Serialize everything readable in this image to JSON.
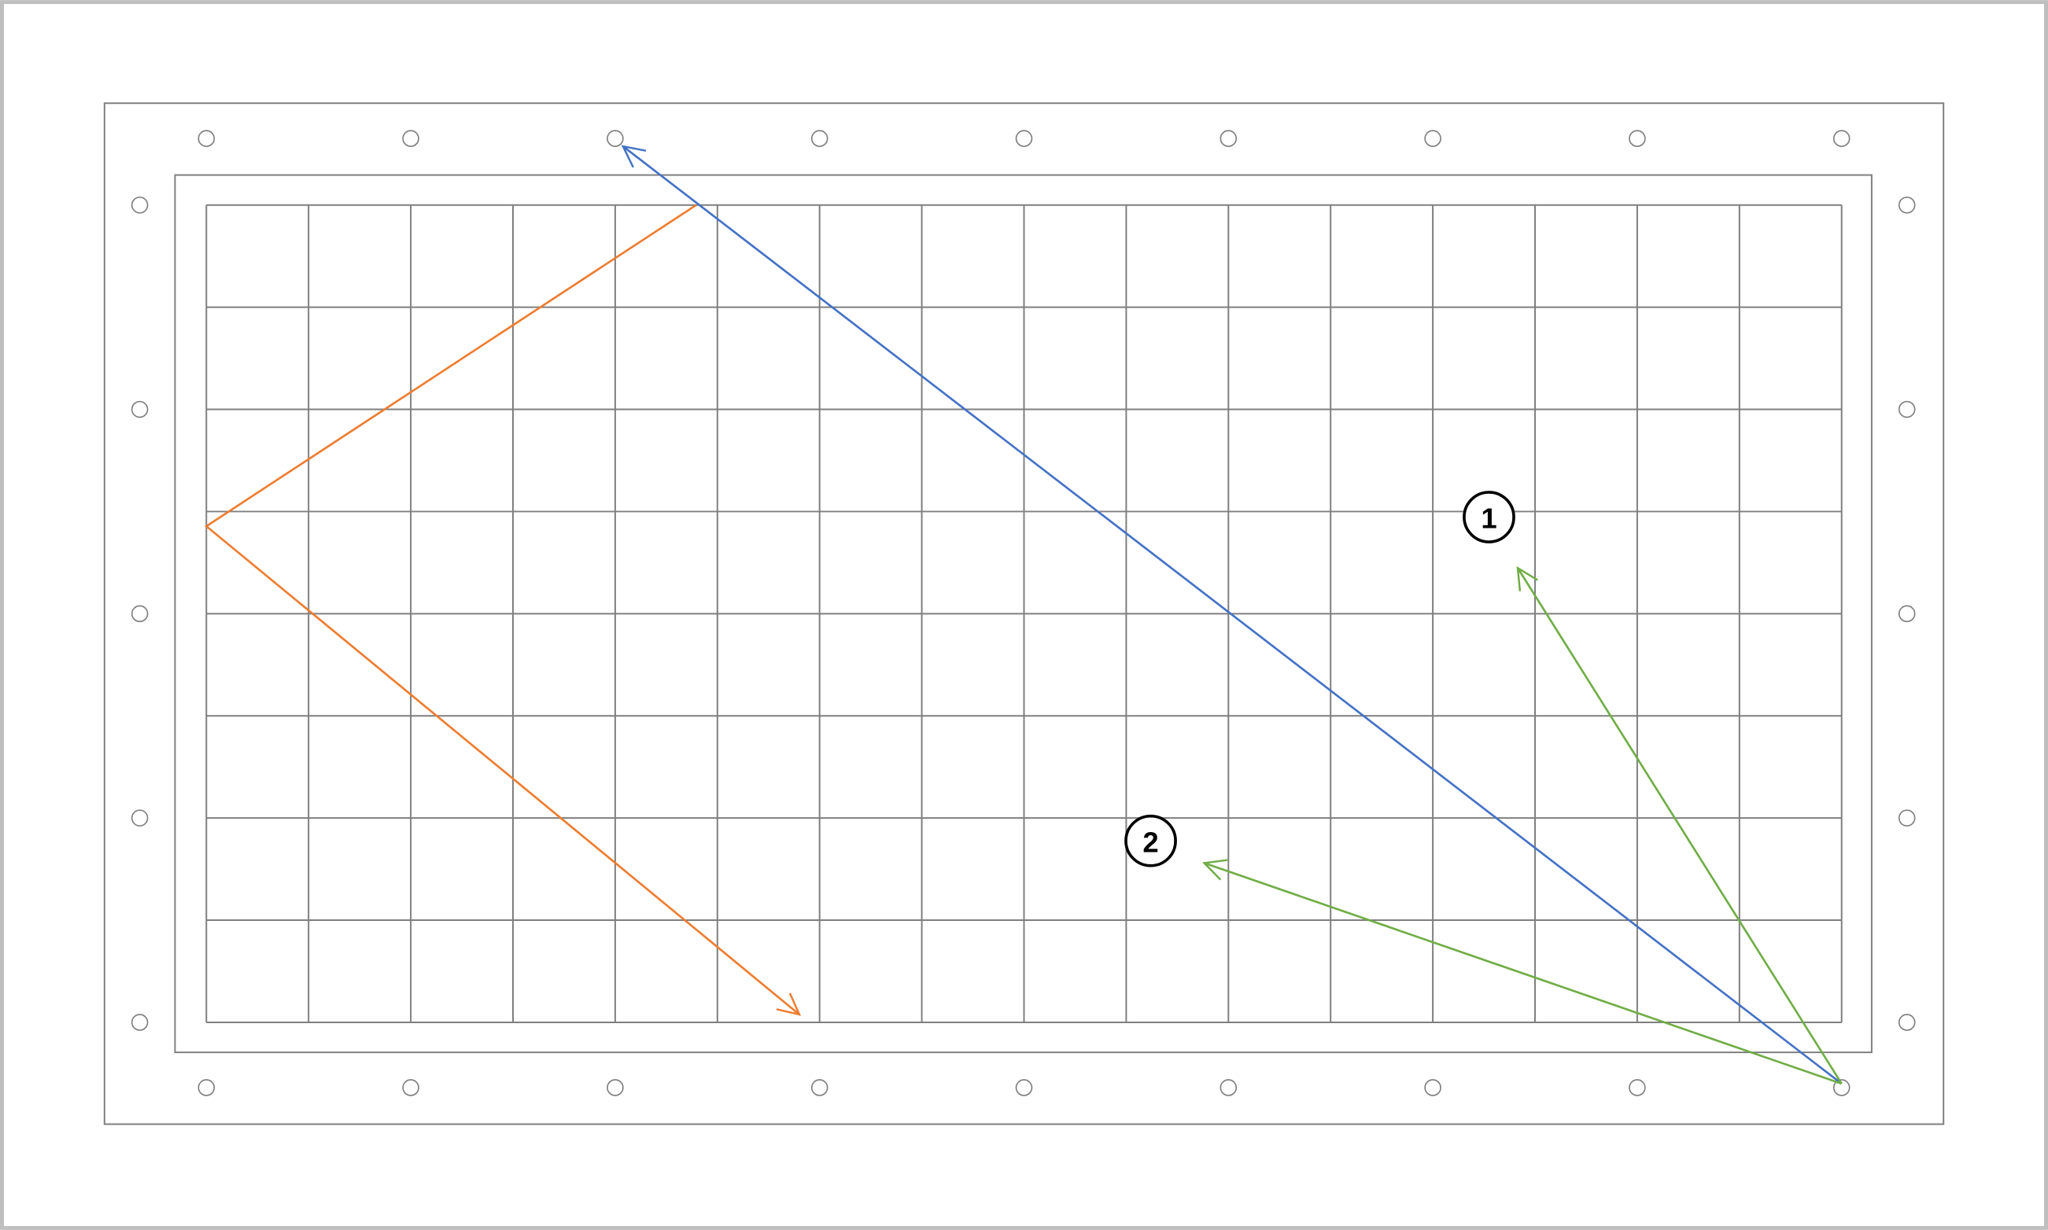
{
  "markers": [
    {
      "label": "1"
    },
    {
      "label": "2"
    }
  ]
}
